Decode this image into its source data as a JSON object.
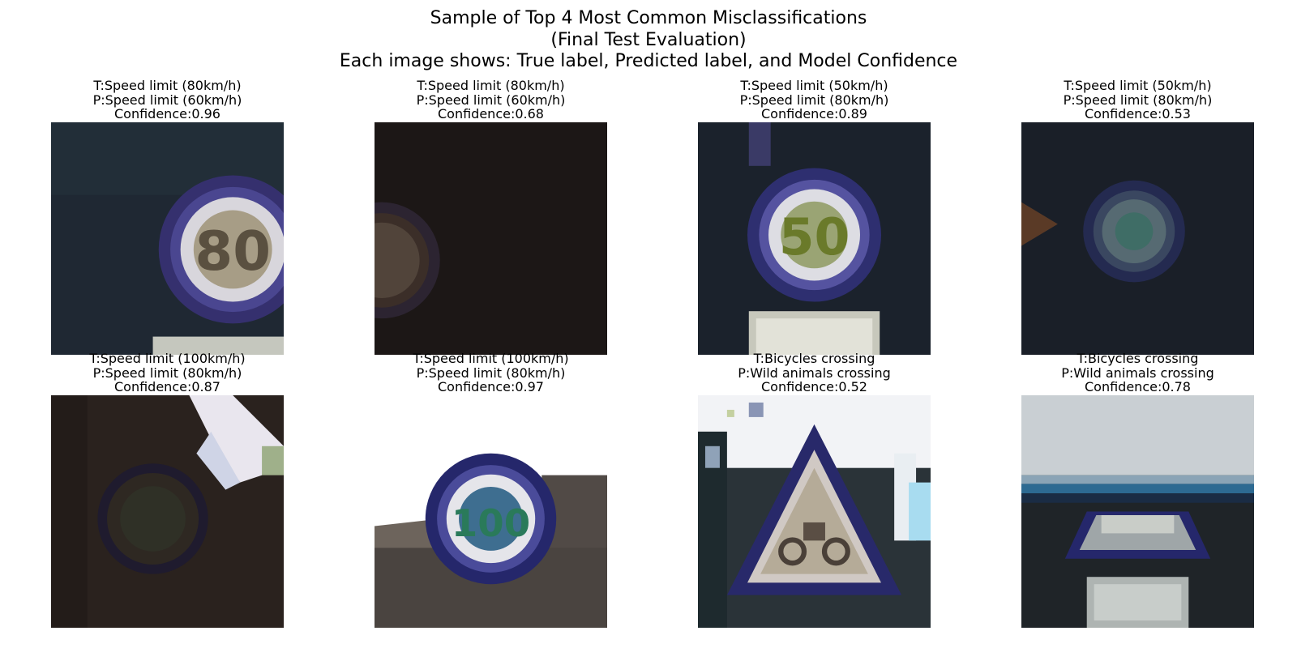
{
  "figure": {
    "title_lines": [
      "Sample of Top 4 Most Common Misclassifications",
      "(Final Test Evaluation)",
      "Each image shows: True label, Predicted label, and Model Confidence"
    ]
  },
  "panels": [
    {
      "true_label": "T:Speed limit (80km/h)",
      "pred_label": "P:Speed limit (60km/h)",
      "confidence": "Confidence:0.96"
    },
    {
      "true_label": "T:Speed limit (80km/h)",
      "pred_label": "P:Speed limit (60km/h)",
      "confidence": "Confidence:0.68"
    },
    {
      "true_label": "T:Speed limit (50km/h)",
      "pred_label": "P:Speed limit (80km/h)",
      "confidence": "Confidence:0.89"
    },
    {
      "true_label": "T:Speed limit (50km/h)",
      "pred_label": "P:Speed limit (80km/h)",
      "confidence": "Confidence:0.53"
    },
    {
      "true_label": "T:Speed limit (100km/h)",
      "pred_label": "P:Speed limit (80km/h)",
      "confidence": "Confidence:0.87"
    },
    {
      "true_label": "T:Speed limit (100km/h)",
      "pred_label": "P:Speed limit (80km/h)",
      "confidence": "Confidence:0.97"
    },
    {
      "true_label": "T:Bicycles crossing",
      "pred_label": "P:Wild animals crossing",
      "confidence": "Confidence:0.52"
    },
    {
      "true_label": "T:Bicycles crossing",
      "pred_label": "P:Wild animals crossing",
      "confidence": "Confidence:0.78"
    }
  ]
}
